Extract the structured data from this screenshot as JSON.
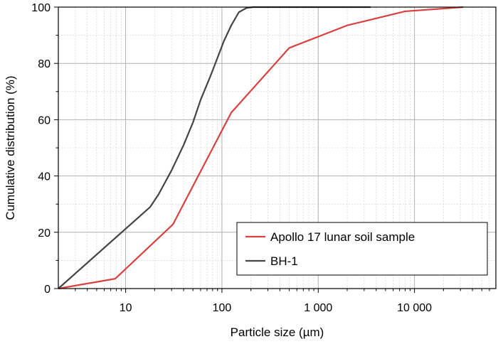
{
  "chart_data": {
    "type": "line",
    "xlabel": "Particle size (µm)",
    "ylabel": "Cumulative distribution (%)",
    "xscale": "log",
    "xlim": [
      2,
      70000
    ],
    "ylim": [
      0,
      100
    ],
    "grid": true,
    "legend_position": "bottom-right",
    "x_ticks": [
      {
        "value": 10,
        "label": "10"
      },
      {
        "value": 100,
        "label": "100"
      },
      {
        "value": 1000,
        "label": "1 000"
      },
      {
        "value": 10000,
        "label": "10 000"
      }
    ],
    "y_ticks": [
      {
        "value": 0,
        "label": "0"
      },
      {
        "value": 20,
        "label": "20"
      },
      {
        "value": 40,
        "label": "40"
      },
      {
        "value": 60,
        "label": "60"
      },
      {
        "value": 80,
        "label": "80"
      },
      {
        "value": 100,
        "label": "100"
      }
    ],
    "series": [
      {
        "name": "Apollo 17 lunar soil sample",
        "color": "#d94040",
        "points": [
          [
            2,
            0
          ],
          [
            7.8,
            3.5
          ],
          [
            31,
            22.8
          ],
          [
            125,
            62.5
          ],
          [
            500,
            85.5
          ],
          [
            2000,
            93.5
          ],
          [
            8000,
            98.5
          ],
          [
            32000,
            100
          ]
        ]
      },
      {
        "name": "BH-1",
        "color": "#444444",
        "points": [
          [
            2,
            0
          ],
          [
            18,
            29
          ],
          [
            22,
            33.5
          ],
          [
            30,
            42
          ],
          [
            40,
            51
          ],
          [
            50,
            59
          ],
          [
            60,
            67
          ],
          [
            75,
            75
          ],
          [
            90,
            82
          ],
          [
            105,
            88
          ],
          [
            125,
            93.5
          ],
          [
            150,
            98.2
          ],
          [
            180,
            99.7
          ],
          [
            210,
            100
          ],
          [
            3500,
            100
          ]
        ]
      }
    ]
  }
}
